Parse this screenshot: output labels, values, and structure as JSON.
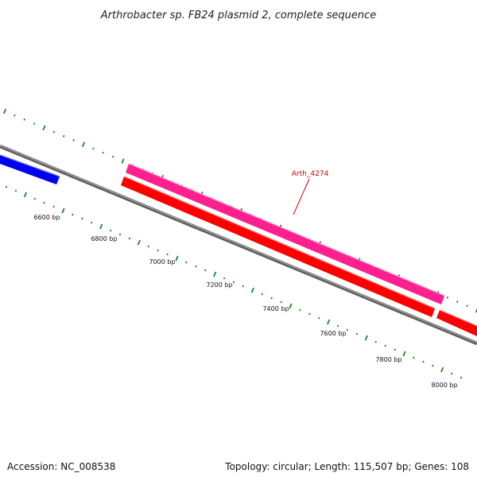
{
  "title": "Arthrobacter sp. FB24 plasmid 2, complete sequence",
  "footer": {
    "accession_label": "Accession: NC_008538",
    "topology_label": "Topology: circular; Length: 115,507 bp; Genes: 108"
  },
  "colors": {
    "backbone": "#7f7f7f",
    "tick": "#1e8a1e",
    "gene_label": "#cc0000",
    "forward_gene_cds": "#0000ee",
    "reverse_gene_cds": "#ff1f8f",
    "reverse_gene_gene": "#ff0000"
  },
  "ticks": [
    {
      "bp": 6600,
      "label": "6600 bp"
    },
    {
      "bp": 6800,
      "label": "6800 bp"
    },
    {
      "bp": 7000,
      "label": "7000 bp"
    },
    {
      "bp": 7200,
      "label": "7200 bp"
    },
    {
      "bp": 7400,
      "label": "7400 bp"
    },
    {
      "bp": 7600,
      "label": "7600 bp"
    },
    {
      "bp": 7800,
      "label": "7800 bp"
    },
    {
      "bp": 8000,
      "label": "8000 bp"
    }
  ],
  "genes": {
    "label": "Arth_4274"
  }
}
